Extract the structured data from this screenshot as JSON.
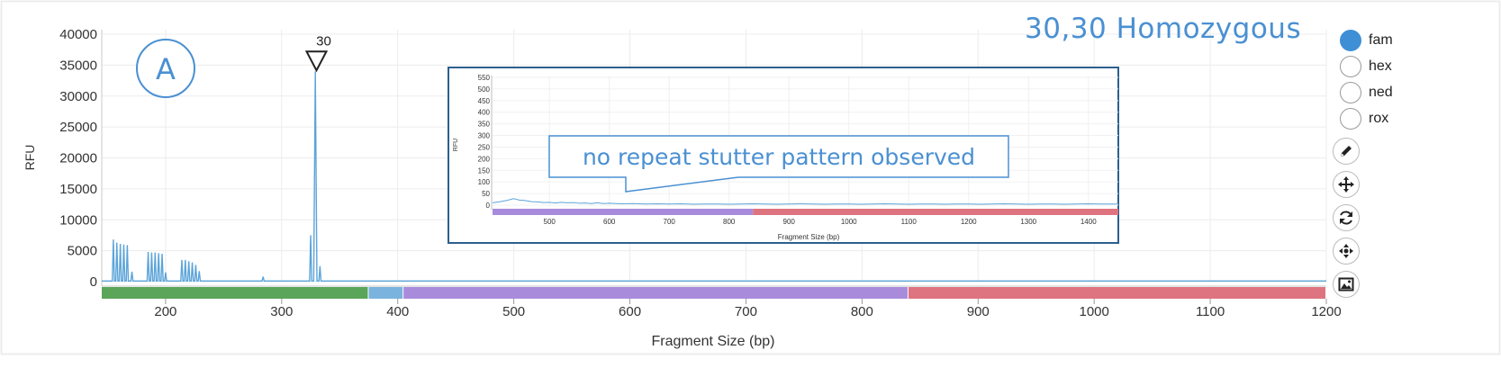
{
  "panel_label": "A",
  "result_text": "30,30 Homozygous",
  "annotation_text": "no repeat stutter pattern observed",
  "legend": [
    {
      "label": "fam",
      "active": true,
      "color": "#3f8fd6"
    },
    {
      "label": "hex",
      "active": false
    },
    {
      "label": "ned",
      "active": false
    },
    {
      "label": "rox",
      "active": false
    }
  ],
  "tools": [
    {
      "name": "edit-icon"
    },
    {
      "name": "move-icon"
    },
    {
      "name": "refresh-icon"
    },
    {
      "name": "recenter-icon"
    },
    {
      "name": "image-icon"
    }
  ],
  "chart_data": [
    {
      "type": "line",
      "xlabel": "Fragment Size (bp)",
      "ylabel": "RFU",
      "xlim": [
        145,
        1200
      ],
      "ylim": [
        0,
        40000
      ],
      "xticks": [
        200,
        300,
        400,
        500,
        600,
        700,
        800,
        900,
        1000,
        1100,
        1200
      ],
      "yticks": [
        0,
        5000,
        10000,
        15000,
        20000,
        25000,
        30000,
        35000,
        40000
      ],
      "grid": true,
      "series_color": "#5ca4d9",
      "peak_label": {
        "text": "30",
        "x": 330,
        "y": 34000
      },
      "size_bands": [
        {
          "from": 145,
          "to": 375,
          "color": "#5aa55a"
        },
        {
          "from": 375,
          "to": 405,
          "color": "#7ab3dd"
        },
        {
          "from": 405,
          "to": 840,
          "color": "#a98bdc"
        },
        {
          "from": 840,
          "to": 1200,
          "color": "#de7480"
        }
      ],
      "peaks": [
        {
          "x": 155,
          "y": 6800
        },
        {
          "x": 158,
          "y": 6300
        },
        {
          "x": 161,
          "y": 6100
        },
        {
          "x": 164,
          "y": 6000
        },
        {
          "x": 167,
          "y": 5900
        },
        {
          "x": 171,
          "y": 1600
        },
        {
          "x": 185,
          "y": 4800
        },
        {
          "x": 188,
          "y": 4700
        },
        {
          "x": 191,
          "y": 4700
        },
        {
          "x": 194,
          "y": 4600
        },
        {
          "x": 197,
          "y": 4500
        },
        {
          "x": 200,
          "y": 1500
        },
        {
          "x": 214,
          "y": 3500
        },
        {
          "x": 217,
          "y": 3500
        },
        {
          "x": 220,
          "y": 3300
        },
        {
          "x": 223,
          "y": 3100
        },
        {
          "x": 226,
          "y": 2700
        },
        {
          "x": 229,
          "y": 1700
        },
        {
          "x": 284,
          "y": 800
        },
        {
          "x": 325,
          "y": 7500
        },
        {
          "x": 329,
          "y": 34000
        },
        {
          "x": 333,
          "y": 2500
        }
      ],
      "baseline": 100
    },
    {
      "type": "line",
      "xlabel": "Fragment Size (bp)",
      "ylabel": "RFU",
      "xlim": [
        405,
        1450
      ],
      "ylim": [
        0,
        550
      ],
      "xticks": [
        500,
        600,
        700,
        800,
        900,
        1000,
        1100,
        1200,
        1300,
        1400
      ],
      "yticks": [
        0,
        50,
        100,
        150,
        200,
        250,
        300,
        350,
        400,
        450,
        500,
        550
      ],
      "series_color": "#5ca4d9",
      "size_bands": [
        {
          "from": 405,
          "to": 840,
          "color": "#a98bdc"
        },
        {
          "from": 840,
          "to": 1450,
          "color": "#de7480"
        }
      ],
      "points": [
        [
          405,
          10
        ],
        [
          420,
          16
        ],
        [
          430,
          21
        ],
        [
          440,
          28
        ],
        [
          450,
          22
        ],
        [
          460,
          20
        ],
        [
          470,
          15
        ],
        [
          480,
          14
        ],
        [
          490,
          11
        ],
        [
          500,
          12
        ],
        [
          510,
          9
        ],
        [
          520,
          12
        ],
        [
          530,
          10
        ],
        [
          540,
          11
        ],
        [
          550,
          8
        ],
        [
          560,
          9
        ],
        [
          570,
          7
        ],
        [
          580,
          10
        ],
        [
          590,
          7
        ],
        [
          600,
          8
        ],
        [
          620,
          6
        ],
        [
          640,
          7
        ],
        [
          660,
          5
        ],
        [
          680,
          6
        ],
        [
          700,
          5
        ],
        [
          720,
          6
        ],
        [
          740,
          4
        ],
        [
          760,
          5
        ],
        [
          780,
          5
        ],
        [
          800,
          4
        ],
        [
          820,
          5
        ],
        [
          840,
          6
        ],
        [
          860,
          5
        ],
        [
          880,
          4
        ],
        [
          900,
          5
        ],
        [
          920,
          6
        ],
        [
          940,
          5
        ],
        [
          960,
          4
        ],
        [
          980,
          5
        ],
        [
          1000,
          5
        ],
        [
          1020,
          4
        ],
        [
          1040,
          5
        ],
        [
          1060,
          6
        ],
        [
          1080,
          5
        ],
        [
          1100,
          4
        ],
        [
          1120,
          5
        ],
        [
          1140,
          5
        ],
        [
          1160,
          4
        ],
        [
          1180,
          5
        ],
        [
          1200,
          5
        ],
        [
          1220,
          4
        ],
        [
          1240,
          5
        ],
        [
          1260,
          6
        ],
        [
          1280,
          5
        ],
        [
          1300,
          4
        ],
        [
          1320,
          5
        ],
        [
          1340,
          5
        ],
        [
          1360,
          4
        ],
        [
          1380,
          5
        ],
        [
          1400,
          6
        ],
        [
          1420,
          5
        ],
        [
          1450,
          5
        ]
      ]
    }
  ]
}
